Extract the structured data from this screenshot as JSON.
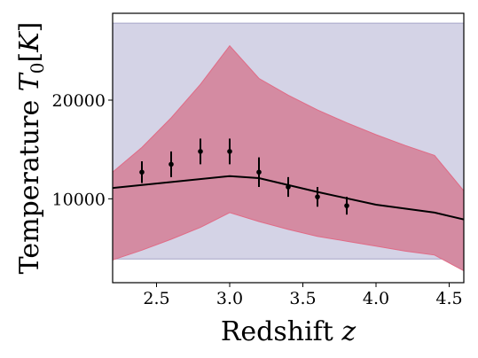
{
  "chart_data": {
    "type": "line",
    "xlabel": "Redshift z",
    "ylabel": "Temperature T0[K]",
    "xlim": [
      2.2,
      4.6
    ],
    "ylim": [
      1500,
      28800
    ],
    "xticks": [
      2.5,
      3.0,
      3.5,
      4.0,
      4.5
    ],
    "xtick_labels": [
      "2.5",
      "3.0",
      "3.5",
      "4.0",
      "4.5"
    ],
    "yticks": [
      10000,
      20000
    ],
    "ytick_labels": [
      "10000",
      "20000"
    ],
    "grid": false,
    "legend": "none",
    "prior_band": {
      "y_low": 3900,
      "y_high": 27800,
      "fill_color": "#d4d3e6",
      "edge_color": "#a7a5c8"
    },
    "posterior_band": {
      "fill_color": "#d48ba2",
      "edge_color": "#e06b86",
      "x": [
        2.2,
        2.4,
        2.6,
        2.8,
        3.0,
        3.2,
        3.4,
        3.6,
        3.8,
        4.0,
        4.2,
        4.4,
        4.6
      ],
      "lower": [
        3800,
        4800,
        5900,
        7100,
        8600,
        7700,
        6900,
        6200,
        5700,
        5200,
        4700,
        4300,
        2700
      ],
      "upper": [
        12700,
        15200,
        18200,
        21600,
        25500,
        22200,
        20500,
        19000,
        17700,
        16500,
        15400,
        14400,
        10800
      ]
    },
    "model_line": {
      "color": "#000000",
      "x": [
        2.2,
        3.0,
        3.2,
        3.6,
        4.0,
        4.4,
        4.6
      ],
      "y": [
        11100,
        12300,
        12100,
        10700,
        9400,
        8600,
        7900
      ]
    },
    "measurements": {
      "color": "#000000",
      "x": [
        2.4,
        2.6,
        2.8,
        3.0,
        3.2,
        3.4,
        3.6,
        3.8
      ],
      "y": [
        12700,
        13500,
        14800,
        14800,
        12700,
        11200,
        10200,
        9300
      ],
      "err": [
        1100,
        1300,
        1300,
        1300,
        1500,
        1000,
        1000,
        900
      ]
    }
  }
}
